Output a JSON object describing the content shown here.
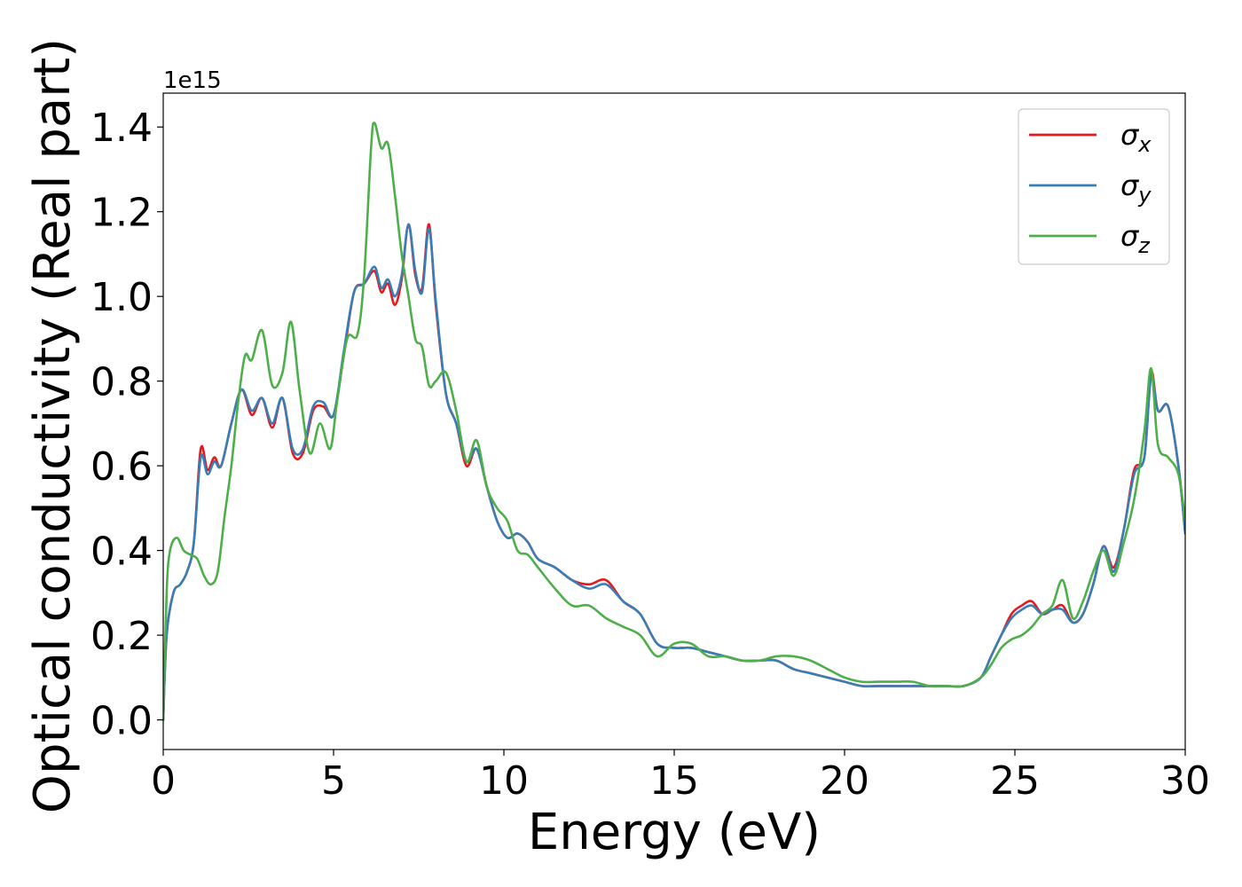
{
  "chart_data": {
    "type": "line",
    "xlabel": "Energy (eV)",
    "ylabel": "Optical conductivity (Real part)",
    "offset_text": "1e15",
    "xlim": [
      0,
      30
    ],
    "ylim": [
      -0.07,
      1.48
    ],
    "xticks": [
      0,
      5,
      10,
      15,
      20,
      25,
      30
    ],
    "xtick_labels": [
      "0",
      "5",
      "10",
      "15",
      "20",
      "25",
      "30"
    ],
    "yticks": [
      0.0,
      0.2,
      0.4,
      0.6,
      0.8,
      1.0,
      1.2,
      1.4
    ],
    "ytick_labels": [
      "0.0",
      "0.2",
      "0.4",
      "0.6",
      "0.8",
      "1.0",
      "1.2",
      "1.4"
    ],
    "grid": false,
    "legend_position": "top-right",
    "series": [
      {
        "name": "σ_x",
        "legend_main": "σ",
        "legend_sub": "x",
        "color": "#e41a1c",
        "x": [
          0,
          0.1,
          0.3,
          0.5,
          0.7,
          0.9,
          1.1,
          1.3,
          1.5,
          1.7,
          2.0,
          2.3,
          2.6,
          2.9,
          3.2,
          3.5,
          3.8,
          4.1,
          4.4,
          4.7,
          5.0,
          5.3,
          5.6,
          5.9,
          6.2,
          6.4,
          6.6,
          6.8,
          7.0,
          7.2,
          7.4,
          7.6,
          7.8,
          8.0,
          8.3,
          8.6,
          8.9,
          9.2,
          9.5,
          9.8,
          10.1,
          10.4,
          10.7,
          11.0,
          11.5,
          12.0,
          12.5,
          13.0,
          13.5,
          14.0,
          14.5,
          15.0,
          15.5,
          16.0,
          16.5,
          17.0,
          17.5,
          18.0,
          18.5,
          19.0,
          19.5,
          20.0,
          20.5,
          21.0,
          21.5,
          22.0,
          22.5,
          23.0,
          23.5,
          24.0,
          24.3,
          24.6,
          24.9,
          25.2,
          25.5,
          25.8,
          26.1,
          26.4,
          26.7,
          27.0,
          27.3,
          27.6,
          27.9,
          28.2,
          28.5,
          28.8,
          29.0,
          29.2,
          29.5,
          29.8,
          30.0
        ],
        "y": [
          0.0,
          0.2,
          0.3,
          0.32,
          0.35,
          0.42,
          0.64,
          0.59,
          0.62,
          0.6,
          0.7,
          0.78,
          0.72,
          0.76,
          0.69,
          0.76,
          0.63,
          0.63,
          0.73,
          0.74,
          0.72,
          0.86,
          1.01,
          1.03,
          1.06,
          1.01,
          1.03,
          0.98,
          1.04,
          1.17,
          1.05,
          1.02,
          1.17,
          0.98,
          0.77,
          0.7,
          0.6,
          0.64,
          0.55,
          0.47,
          0.43,
          0.44,
          0.42,
          0.38,
          0.36,
          0.33,
          0.32,
          0.33,
          0.28,
          0.25,
          0.18,
          0.17,
          0.17,
          0.16,
          0.15,
          0.14,
          0.14,
          0.14,
          0.12,
          0.11,
          0.1,
          0.09,
          0.08,
          0.08,
          0.08,
          0.08,
          0.08,
          0.08,
          0.08,
          0.1,
          0.15,
          0.2,
          0.25,
          0.27,
          0.28,
          0.25,
          0.26,
          0.27,
          0.23,
          0.25,
          0.32,
          0.41,
          0.36,
          0.45,
          0.59,
          0.62,
          0.82,
          0.73,
          0.74,
          0.6,
          0.44
        ]
      },
      {
        "name": "σ_y",
        "legend_main": "σ",
        "legend_sub": "y",
        "color": "#377eb8",
        "x": [
          0,
          0.1,
          0.3,
          0.5,
          0.7,
          0.9,
          1.1,
          1.3,
          1.5,
          1.7,
          2.0,
          2.3,
          2.6,
          2.9,
          3.2,
          3.5,
          3.8,
          4.1,
          4.4,
          4.7,
          5.0,
          5.3,
          5.6,
          5.9,
          6.2,
          6.4,
          6.6,
          6.8,
          7.0,
          7.2,
          7.4,
          7.6,
          7.8,
          8.0,
          8.3,
          8.6,
          8.9,
          9.2,
          9.5,
          9.8,
          10.1,
          10.4,
          10.7,
          11.0,
          11.5,
          12.0,
          12.5,
          13.0,
          13.5,
          14.0,
          14.5,
          15.0,
          15.5,
          16.0,
          16.5,
          17.0,
          17.5,
          18.0,
          18.5,
          19.0,
          19.5,
          20.0,
          20.5,
          21.0,
          21.5,
          22.0,
          22.5,
          23.0,
          23.5,
          24.0,
          24.3,
          24.6,
          24.9,
          25.2,
          25.5,
          25.8,
          26.1,
          26.4,
          26.7,
          27.0,
          27.3,
          27.6,
          27.9,
          28.2,
          28.5,
          28.8,
          29.0,
          29.2,
          29.5,
          29.8,
          30.0
        ],
        "y": [
          0.0,
          0.2,
          0.3,
          0.32,
          0.35,
          0.42,
          0.62,
          0.58,
          0.61,
          0.6,
          0.7,
          0.78,
          0.73,
          0.76,
          0.7,
          0.76,
          0.64,
          0.64,
          0.74,
          0.75,
          0.72,
          0.87,
          1.01,
          1.03,
          1.07,
          1.02,
          1.04,
          1.0,
          1.05,
          1.17,
          1.06,
          1.01,
          1.16,
          0.99,
          0.77,
          0.7,
          0.61,
          0.64,
          0.55,
          0.47,
          0.43,
          0.44,
          0.42,
          0.38,
          0.36,
          0.33,
          0.31,
          0.32,
          0.28,
          0.25,
          0.18,
          0.17,
          0.17,
          0.16,
          0.15,
          0.14,
          0.14,
          0.14,
          0.12,
          0.11,
          0.1,
          0.09,
          0.08,
          0.08,
          0.08,
          0.08,
          0.08,
          0.08,
          0.08,
          0.1,
          0.15,
          0.2,
          0.24,
          0.26,
          0.27,
          0.25,
          0.26,
          0.26,
          0.23,
          0.25,
          0.32,
          0.41,
          0.35,
          0.45,
          0.58,
          0.62,
          0.81,
          0.73,
          0.74,
          0.6,
          0.44
        ]
      },
      {
        "name": "σ_z",
        "legend_main": "σ",
        "legend_sub": "z",
        "color": "#4daf4a",
        "x": [
          0,
          0.1,
          0.2,
          0.4,
          0.6,
          0.8,
          1.0,
          1.2,
          1.4,
          1.6,
          1.8,
          2.0,
          2.2,
          2.4,
          2.6,
          2.9,
          3.2,
          3.5,
          3.75,
          4.0,
          4.3,
          4.6,
          4.9,
          5.1,
          5.4,
          5.7,
          5.9,
          6.1,
          6.2,
          6.4,
          6.6,
          6.8,
          7.0,
          7.2,
          7.4,
          7.6,
          7.8,
          8.0,
          8.3,
          8.6,
          8.9,
          9.2,
          9.5,
          9.8,
          10.1,
          10.4,
          10.7,
          11.0,
          11.5,
          12.0,
          12.5,
          13.0,
          13.5,
          14.0,
          14.5,
          15.0,
          15.5,
          16.0,
          16.5,
          17.0,
          17.5,
          18.0,
          18.5,
          19.0,
          19.5,
          20.0,
          20.5,
          21.0,
          21.5,
          22.0,
          22.5,
          23.0,
          23.5,
          24.0,
          24.3,
          24.6,
          24.9,
          25.2,
          25.5,
          25.8,
          26.1,
          26.4,
          26.7,
          27.0,
          27.3,
          27.6,
          27.9,
          28.2,
          28.5,
          28.8,
          29.0,
          29.2,
          29.5,
          29.8,
          30.0
        ],
        "y": [
          0.0,
          0.3,
          0.4,
          0.43,
          0.4,
          0.39,
          0.38,
          0.34,
          0.32,
          0.35,
          0.48,
          0.6,
          0.75,
          0.86,
          0.85,
          0.92,
          0.79,
          0.82,
          0.94,
          0.78,
          0.63,
          0.7,
          0.64,
          0.75,
          0.9,
          0.91,
          1.05,
          1.35,
          1.41,
          1.35,
          1.36,
          1.24,
          1.1,
          1.0,
          0.9,
          0.88,
          0.79,
          0.8,
          0.82,
          0.73,
          0.61,
          0.66,
          0.55,
          0.5,
          0.47,
          0.4,
          0.39,
          0.36,
          0.31,
          0.27,
          0.27,
          0.24,
          0.22,
          0.2,
          0.15,
          0.18,
          0.18,
          0.15,
          0.15,
          0.14,
          0.14,
          0.15,
          0.15,
          0.14,
          0.12,
          0.1,
          0.09,
          0.09,
          0.09,
          0.09,
          0.08,
          0.08,
          0.08,
          0.1,
          0.13,
          0.17,
          0.19,
          0.2,
          0.22,
          0.25,
          0.27,
          0.33,
          0.24,
          0.28,
          0.35,
          0.4,
          0.34,
          0.42,
          0.52,
          0.68,
          0.83,
          0.65,
          0.62,
          0.58,
          0.47
        ]
      }
    ]
  }
}
